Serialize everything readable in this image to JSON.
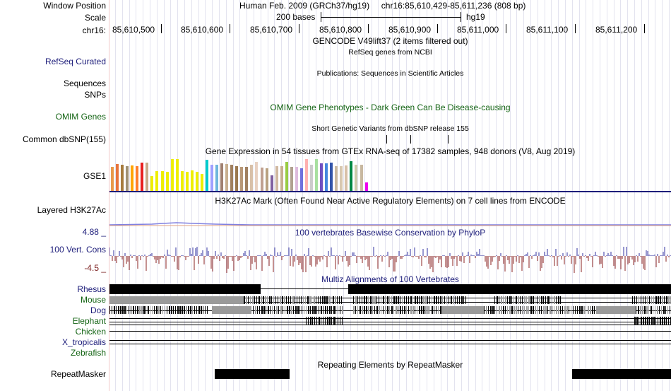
{
  "header": {
    "window_position_label": "Window Position",
    "assembly_text": "Human Feb. 2009 (GRCh37/hg19)",
    "position_text": "chr16:85,610,429-85,611,236 (808 bp)",
    "scale_label": "Scale",
    "scale_text": "200 bases",
    "scale_db": "hg19",
    "chrom_label": "chr16:"
  },
  "ruler": {
    "ticks": [
      "85,610,500",
      "85,610,600",
      "85,610,700",
      "85,610,800",
      "85,610,900",
      "85,611,000",
      "85,611,100",
      "85,611,200"
    ]
  },
  "tracks": {
    "gencode": "GENCODE V49lift37 (2 items filtered out)",
    "refseq_desc": "RefSeq genes from NCBI",
    "refseq_label": "RefSeq Curated",
    "pubs_desc": "Publications: Sequences in Scientific Articles",
    "sequences_label": "Sequences",
    "snps_label": "SNPs",
    "omim_label": "OMIM Genes",
    "omim_desc": "OMIM Gene Phenotypes - Dark Green Can Be Disease-causing",
    "dbsnp_desc": "Short Genetic Variants from dbSNP release 155",
    "dbsnp_label": "Common dbSNP(155)",
    "gtex_desc": "Gene Expression in 54 tissues from GTEx RNA-seq of 17382 samples, 948 donors (V8, Aug 2019)",
    "gtex_label": "GSE1",
    "h3k27ac_desc": "H3K27Ac Mark (Often Found Near Active Regulatory Elements) on 7 cell lines from ENCODE",
    "h3k27ac_label": "Layered H3K27Ac",
    "cons_max": "4.88 _",
    "cons_min": "-4.5 _",
    "cons_label": "100 Vert. Cons",
    "cons_desc": "100 vertebrates Basewise Conservation by PhyloP",
    "multiz_desc": "Multiz Alignments of 100 Vertebrates",
    "species": [
      "Rhesus",
      "Mouse",
      "Dog",
      "Elephant",
      "Chicken",
      "X_tropicalis",
      "Zebrafish"
    ],
    "repeat_desc": "Repeating Elements by RepeatMasker",
    "repeat_label": "RepeatMasker"
  },
  "colors": {
    "blue_label": "#1d1d7a",
    "green_label": "#146414",
    "cons_max_color": "#1d1d7a",
    "cons_min_color": "#7a1d1d"
  },
  "gtex_bars": [
    {
      "h": 0.73,
      "c": "#e89a4a"
    },
    {
      "h": 0.82,
      "c": "#e8743a"
    },
    {
      "h": 0.8,
      "c": "#a67b3d"
    },
    {
      "h": 0.75,
      "c": "#a09074"
    },
    {
      "h": 0.78,
      "c": "#ffa500"
    },
    {
      "h": 0.77,
      "c": "#ff7f2a"
    },
    {
      "h": 0.86,
      "c": "#e82020"
    },
    {
      "h": 0.86,
      "c": "#c8a888"
    },
    {
      "h": 0.45,
      "c": "#eeee00"
    },
    {
      "h": 0.6,
      "c": "#eeee00"
    },
    {
      "h": 0.6,
      "c": "#eeee00"
    },
    {
      "h": 0.58,
      "c": "#eeee00"
    },
    {
      "h": 0.98,
      "c": "#eeee00"
    },
    {
      "h": 0.98,
      "c": "#eeee00"
    },
    {
      "h": 0.61,
      "c": "#eeee00"
    },
    {
      "h": 0.58,
      "c": "#eeee00"
    },
    {
      "h": 0.63,
      "c": "#eeee00"
    },
    {
      "h": 0.58,
      "c": "#eeee00"
    },
    {
      "h": 0.52,
      "c": "#eeee00"
    },
    {
      "h": 0.96,
      "c": "#00cccc"
    },
    {
      "h": 0.8,
      "c": "#a0a0ff"
    },
    {
      "h": 0.8,
      "c": "#6fb6dc"
    },
    {
      "h": 0.85,
      "c": "#a08070"
    },
    {
      "h": 0.82,
      "c": "#c8b090"
    },
    {
      "h": 0.8,
      "c": "#a08060"
    },
    {
      "h": 0.77,
      "c": "#9a7850"
    },
    {
      "h": 0.73,
      "c": "#b89878"
    },
    {
      "h": 0.73,
      "c": "#a08060"
    },
    {
      "h": 0.8,
      "c": "#d8c0a8"
    },
    {
      "h": 0.9,
      "c": "#e8d0c0"
    },
    {
      "h": 0.72,
      "c": "#c0a090"
    },
    {
      "h": 0.7,
      "c": "#b8a080"
    },
    {
      "h": 0.48,
      "c": "#8060a0"
    },
    {
      "h": 0.75,
      "c": "#d0b8a0"
    },
    {
      "h": 0.75,
      "c": "#c8b090"
    },
    {
      "h": 0.9,
      "c": "#99cc44"
    },
    {
      "h": 0.74,
      "c": "#b0a090"
    },
    {
      "h": 0.73,
      "c": "#ddbbdd"
    },
    {
      "h": 0.7,
      "c": "#7070dd"
    },
    {
      "h": 0.97,
      "c": "#ffb0b0"
    },
    {
      "h": 0.8,
      "c": "#cccccc"
    },
    {
      "h": 0.97,
      "c": "#a8e0a0"
    },
    {
      "h": 0.85,
      "c": "#7050c0"
    },
    {
      "h": 0.85,
      "c": "#4488dd"
    },
    {
      "h": 0.86,
      "c": "#3355aa"
    },
    {
      "h": 0.77,
      "c": "#c8b8a0"
    },
    {
      "h": 0.76,
      "c": "#d8c8b0"
    },
    {
      "h": 0.78,
      "c": "#d8c0a8"
    },
    {
      "h": 0.92,
      "c": "#008844"
    },
    {
      "h": 0.8,
      "c": "#ccccaa"
    },
    {
      "h": 0.8,
      "c": "#c8b8a0"
    },
    {
      "h": 0.27,
      "c": "#ee00ee"
    }
  ]
}
